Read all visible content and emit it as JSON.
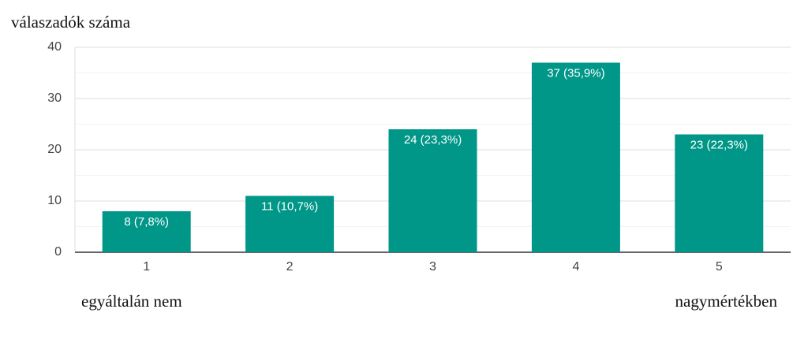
{
  "chart_data": {
    "type": "bar",
    "y_label": "válaszadók száma",
    "annotations": [
      "egyáltalán nem",
      "nagymértékben"
    ],
    "categories": [
      "1",
      "2",
      "3",
      "4",
      "5"
    ],
    "values": [
      8,
      11,
      24,
      37,
      23
    ],
    "value_labels": [
      "8 (7,8%)",
      "11 (10,7%)",
      "24 (23,3%)",
      "37 (35,9%)",
      "23 (22,3%)"
    ],
    "color": "#009688",
    "ylim": [
      0,
      40
    ],
    "yticks": [
      0,
      10,
      20,
      30,
      40
    ],
    "minor_yticks": [
      5,
      15,
      25,
      35
    ],
    "grid": true
  }
}
